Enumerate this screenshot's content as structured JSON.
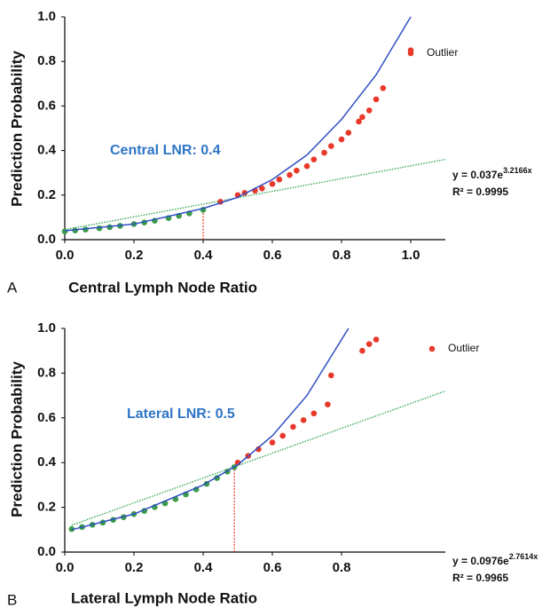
{
  "chart_data": [
    {
      "type": "scatter",
      "panel_label": "A",
      "x_label": "Central Lymph Node Ratio",
      "y_label": "Prediction Probability",
      "xlim": [
        0,
        1.1
      ],
      "ylim": [
        0,
        1.0
      ],
      "xticks": [
        {
          "value": 0,
          "label": "0.0"
        },
        {
          "value": 0.2,
          "label": "0.2"
        },
        {
          "value": 0.4,
          "label": "0.4"
        },
        {
          "value": 0.6,
          "label": "0.6"
        },
        {
          "value": 0.8,
          "label": "0.8"
        },
        {
          "value": 1.0,
          "label": "1.0"
        }
      ],
      "yticks": [
        {
          "value": 0,
          "label": "0.0"
        },
        {
          "value": 0.2,
          "label": "0.2"
        },
        {
          "value": 0.4,
          "label": "0.4"
        },
        {
          "value": 0.6,
          "label": "0.6"
        },
        {
          "value": 0.8,
          "label": "0.8"
        },
        {
          "value": 1.0,
          "label": "1.0"
        }
      ],
      "annotation": "Central LNR: 0.4",
      "equation": {
        "base": "y = 0.037e",
        "exponent": "3.2166x"
      },
      "r_squared": "R² = 0.9995",
      "series": [
        {
          "color": "#3a9c48",
          "x": [
            0,
            0.03,
            0.06,
            0.1,
            0.13,
            0.16,
            0.2,
            0.23,
            0.26,
            0.3,
            0.33,
            0.36,
            0.4
          ],
          "values": [
            0.037,
            0.041,
            0.045,
            0.051,
            0.056,
            0.062,
            0.07,
            0.077,
            0.085,
            0.097,
            0.107,
            0.118,
            0.134
          ]
        },
        {
          "name": "Outlier",
          "color": "#e8392a",
          "x": [
            0.45,
            0.5,
            0.52,
            0.55,
            0.57,
            0.6,
            0.62,
            0.65,
            0.67,
            0.7,
            0.72,
            0.75,
            0.77,
            0.8,
            0.82,
            0.85,
            0.86,
            0.88,
            0.9,
            0.92,
            1.0
          ],
          "values": [
            0.17,
            0.2,
            0.21,
            0.22,
            0.23,
            0.25,
            0.27,
            0.29,
            0.31,
            0.33,
            0.36,
            0.39,
            0.42,
            0.45,
            0.48,
            0.53,
            0.55,
            0.58,
            0.63,
            0.68,
            0.85
          ]
        }
      ],
      "fit_curve": {
        "color": "#2e4fc4",
        "x": [
          0,
          0.2,
          0.4,
          0.5,
          0.6,
          0.7,
          0.8,
          0.9,
          1.0
        ],
        "values": [
          0.04,
          0.07,
          0.14,
          0.19,
          0.27,
          0.38,
          0.54,
          0.74,
          1.0
        ]
      },
      "trend_line": {
        "color": "#2aa04a",
        "x": [
          0,
          1.1
        ],
        "values": [
          0.045,
          0.36
        ]
      },
      "cutoff": {
        "color": "#e8392a",
        "x": 0.4,
        "y": 0.15
      }
    },
    {
      "type": "scatter",
      "panel_label": "B",
      "x_label": "Lateral Lymph Node Ratio",
      "y_label": "Prediction Probability",
      "xlim": [
        0,
        1.1
      ],
      "ylim": [
        0,
        1.0
      ],
      "xticks": [
        {
          "value": 0,
          "label": "0.0"
        },
        {
          "value": 0.2,
          "label": "0.2"
        },
        {
          "value": 0.4,
          "label": "0.4"
        },
        {
          "value": 0.6,
          "label": "0.6"
        },
        {
          "value": 0.8,
          "label": "0.8"
        }
      ],
      "yticks": [
        {
          "value": 0,
          "label": "0.0"
        },
        {
          "value": 0.2,
          "label": "0.2"
        },
        {
          "value": 0.4,
          "label": "0.4"
        },
        {
          "value": 0.6,
          "label": "0.6"
        },
        {
          "value": 0.8,
          "label": "0.8"
        },
        {
          "value": 1.0,
          "label": "1.0"
        }
      ],
      "annotation": "Lateral LNR: 0.5",
      "equation": {
        "base": "y = 0.0976e",
        "exponent": "2.7614x"
      },
      "r_squared": "R² = 0.9965",
      "series": [
        {
          "color": "#3a9c48",
          "x": [
            0.02,
            0.05,
            0.08,
            0.11,
            0.14,
            0.17,
            0.2,
            0.23,
            0.26,
            0.29,
            0.32,
            0.35,
            0.38,
            0.41,
            0.44,
            0.47,
            0.49
          ],
          "values": [
            0.103,
            0.112,
            0.122,
            0.132,
            0.144,
            0.156,
            0.17,
            0.184,
            0.201,
            0.218,
            0.237,
            0.258,
            0.28,
            0.305,
            0.331,
            0.36,
            0.38
          ]
        },
        {
          "name": "Outlier",
          "color": "#e8392a",
          "x": [
            0.5,
            0.53,
            0.56,
            0.6,
            0.63,
            0.66,
            0.69,
            0.72,
            0.76,
            0.77,
            0.86,
            0.88,
            0.9
          ],
          "values": [
            0.4,
            0.43,
            0.46,
            0.49,
            0.52,
            0.56,
            0.59,
            0.62,
            0.66,
            0.79,
            0.9,
            0.93,
            0.95
          ]
        }
      ],
      "fit_curve": {
        "color": "#2e4fc4",
        "x": [
          0.02,
          0.2,
          0.4,
          0.5,
          0.6,
          0.7,
          0.82
        ],
        "values": [
          0.1,
          0.17,
          0.3,
          0.39,
          0.52,
          0.7,
          1.0
        ]
      },
      "trend_line": {
        "color": "#2aa04a",
        "x": [
          0.02,
          1.1
        ],
        "values": [
          0.12,
          0.72
        ]
      },
      "cutoff": {
        "color": "#e8392a",
        "x": 0.49,
        "y": 0.39
      }
    }
  ]
}
